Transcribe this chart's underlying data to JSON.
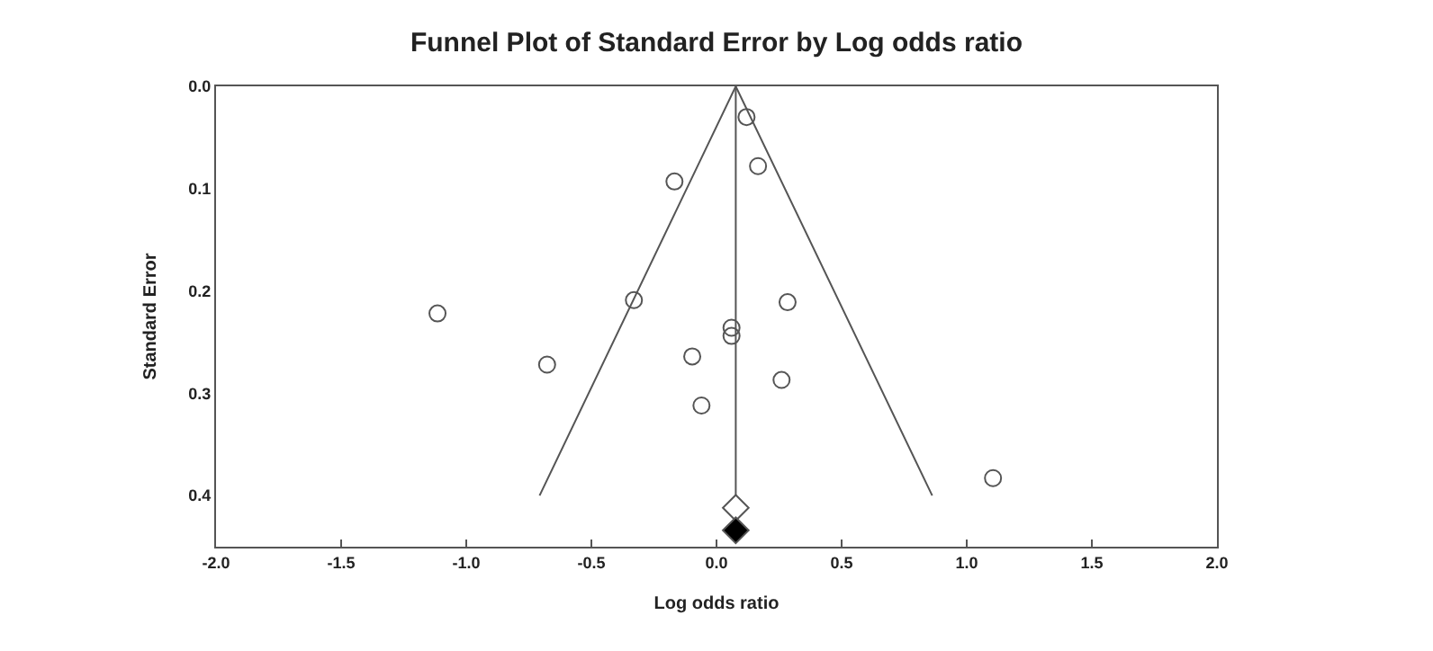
{
  "chart_data": {
    "type": "scatter",
    "title": "Funnel Plot of Standard Error by Log odds ratio",
    "xlabel": "Log odds ratio",
    "ylabel": "Standard Error",
    "xlim": [
      -2.0,
      2.0
    ],
    "xticks": [
      {
        "value": -2,
        "label": "-2.0"
      },
      {
        "value": -1.5,
        "label": "-1.5"
      },
      {
        "value": -1,
        "label": "-1.0"
      },
      {
        "value": -0.5,
        "label": "-0.5"
      },
      {
        "value": 0,
        "label": "0.0"
      },
      {
        "value": 0.5,
        "label": "0.5"
      },
      {
        "value": 1,
        "label": "1.0"
      },
      {
        "value": 1.5,
        "label": "1.5"
      },
      {
        "value": 2,
        "label": "2.0"
      }
    ],
    "ylim": [
      0.45,
      0.0
    ],
    "yticks": [
      {
        "value": 0,
        "label": "0.0"
      },
      {
        "value": 0.1,
        "label": "0.1"
      },
      {
        "value": 0.2,
        "label": "0.2"
      },
      {
        "value": 0.3,
        "label": "0.3"
      },
      {
        "value": 0.4,
        "label": "0.4"
      }
    ],
    "series": [
      {
        "marker": "circle",
        "color": "#555555",
        "x": [
          0.12,
          0.166,
          -0.168,
          -1.115,
          -0.33,
          0.284,
          0.06,
          0.06,
          -0.677,
          -0.097,
          0.26,
          -0.06,
          1.105
        ],
        "values": [
          0.03,
          0.078,
          0.093,
          0.222,
          0.209,
          0.211,
          0.236,
          0.244,
          0.272,
          0.264,
          0.287,
          0.312,
          0.383
        ]
      },
      {
        "type": "line",
        "marker": "none",
        "color": "#555555",
        "x": [
          -0.707,
          0.077,
          0.862
        ],
        "values": [
          0.4,
          0.0,
          0.4
        ]
      },
      {
        "marker": "diamond",
        "color": "#ffffff",
        "x": [
          0.077
        ],
        "values": [
          0.412
        ]
      },
      {
        "marker": "diamond",
        "color": "#000000",
        "x": [
          0.077
        ],
        "values": [
          0.434
        ]
      }
    ],
    "ref_lines": [
      {
        "axis": "x",
        "value": 0.077,
        "label": null,
        "color": "#555555"
      }
    ]
  }
}
